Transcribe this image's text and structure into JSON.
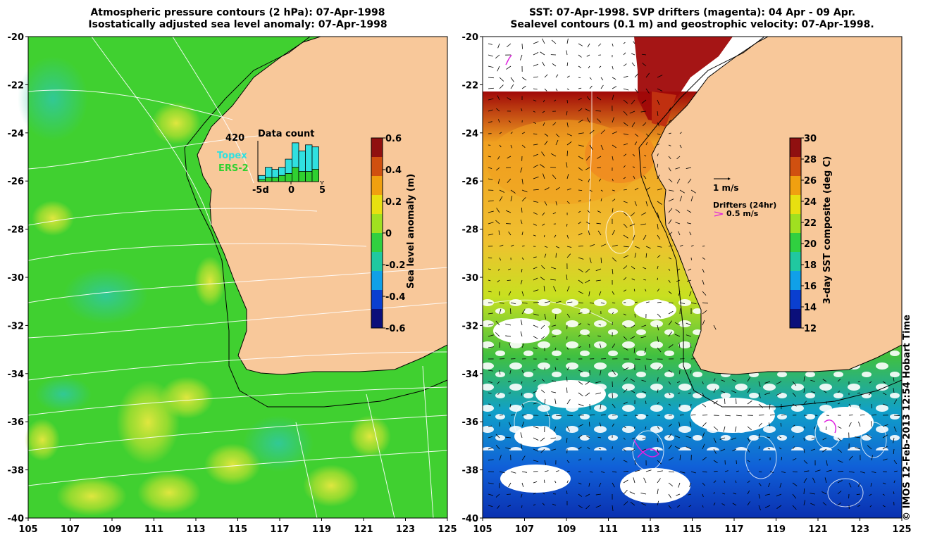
{
  "left": {
    "title_line1": "Atmospheric pressure contours (2 hPa): 07-Apr-1998",
    "title_line2": "Isostatically adjusted sea level anomaly: 07-Apr-1998",
    "colorbar": {
      "label": "Sea level anomaly (m)",
      "ticks": [
        "0.6",
        "0.4",
        "0.2",
        "0",
        "-0.2",
        "-0.4",
        "-0.6"
      ],
      "colors": [
        "#0b0f7a",
        "#0a3fd0",
        "#10a0e8",
        "#20c8a0",
        "#30d040",
        "#a0e020",
        "#e8e010",
        "#f0a010",
        "#d05010",
        "#901010"
      ]
    },
    "inset": {
      "title": "Data count",
      "max_label": "420",
      "legend": [
        {
          "name": "Topex",
          "color": "#30e0e0"
        },
        {
          "name": "ERS-2",
          "color": "#30d030"
        }
      ],
      "xticks": [
        "-5d",
        "0",
        "5"
      ],
      "bars_topex": [
        0.15,
        0.35,
        0.3,
        0.35,
        0.55,
        0.95,
        0.75,
        0.9,
        0.85
      ],
      "bars_ers2": [
        0.05,
        0.1,
        0.1,
        0.15,
        0.2,
        0.35,
        0.25,
        0.25,
        0.3
      ]
    }
  },
  "right": {
    "title_line1": "SST: 07-Apr-1998. SVP drifters (magenta): 04 Apr - 09 Apr.",
    "title_line2": "Sealevel contours (0.1 m) and geostrophic velocity: 07-Apr-1998.",
    "colorbar": {
      "label": "3-day SST composite (deg C)",
      "ticks": [
        "30",
        "28",
        "26",
        "24",
        "22",
        "20",
        "18",
        "16",
        "14",
        "12"
      ],
      "colors": [
        "#0b0f7a",
        "#0a3fd0",
        "#10a0e8",
        "#20c8a0",
        "#30d040",
        "#a0e020",
        "#e8e010",
        "#f0a010",
        "#d05010",
        "#901010"
      ]
    },
    "velocity_scale": "1 m/s",
    "drifters_label": "Drifters (24hr)",
    "drifters_scale": "0.5 m/s"
  },
  "axes": {
    "lat_ticks": [
      "-20",
      "-22",
      "-24",
      "-26",
      "-28",
      "-30",
      "-32",
      "-34",
      "-36",
      "-38",
      "-40"
    ],
    "lon_ticks": [
      "105",
      "107",
      "109",
      "111",
      "113",
      "115",
      "117",
      "119",
      "121",
      "123",
      "125"
    ]
  },
  "credit": "© IMOS 12-Feb-2013 12:54 Hobart Time",
  "colors": {
    "land": "#f8c89a",
    "ocean_green": "#40d030",
    "coast": "#000000"
  }
}
